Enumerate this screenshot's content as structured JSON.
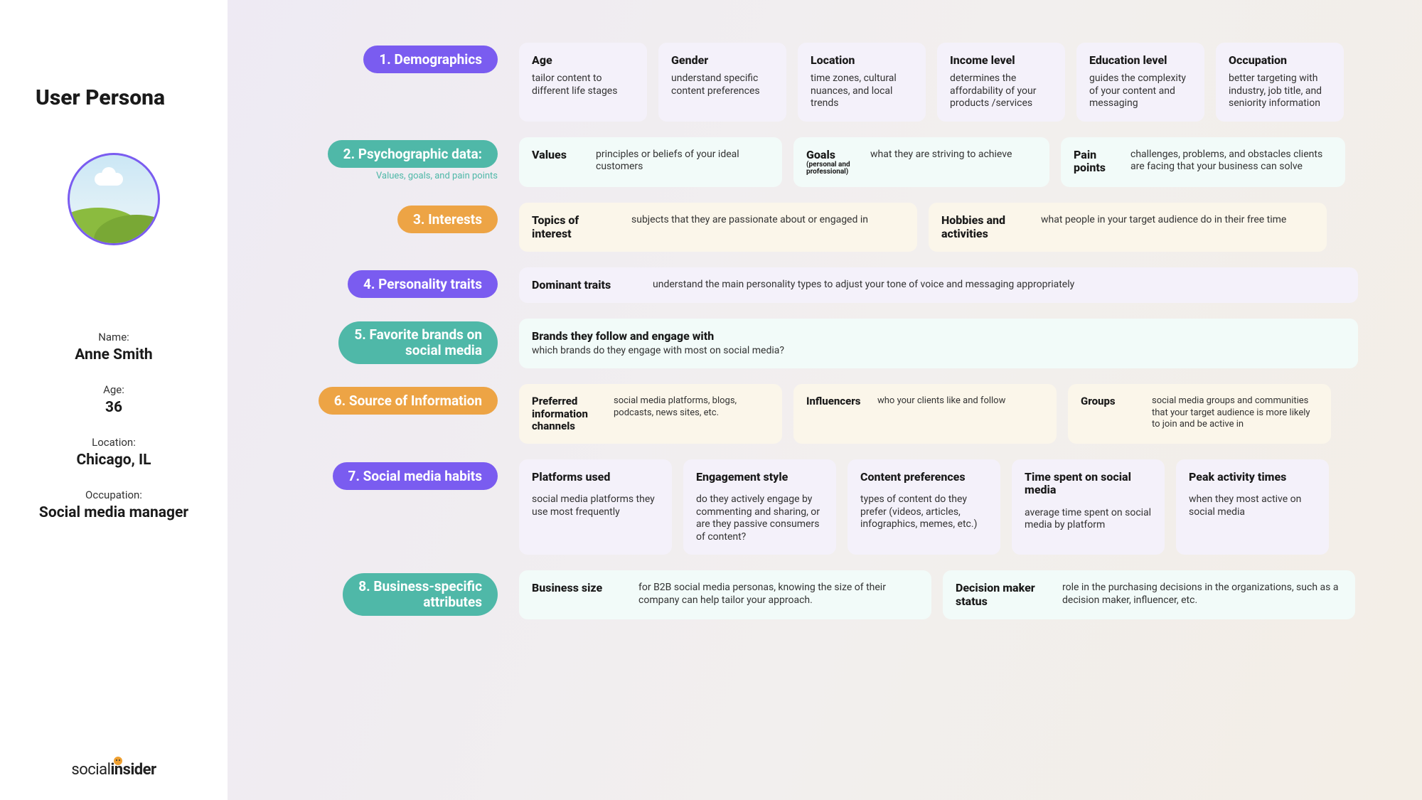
{
  "sidebar": {
    "title": "User Persona",
    "fields": [
      {
        "label": "Name:",
        "value": "Anne Smith"
      },
      {
        "label": "Age:",
        "value": "36"
      },
      {
        "label": "Location:",
        "value": "Chicago, IL"
      },
      {
        "label": "Occupation:",
        "value": "Social media manager"
      }
    ],
    "brand_light": "social",
    "brand_bold": "insider"
  },
  "colors": {
    "purple": "#7a5cf0",
    "teal": "#4fb8a8",
    "orange": "#eda445",
    "bg_purple": "#f4f1fa",
    "bg_teal": "#f2fbf9",
    "bg_orange": "#fbf6ea"
  },
  "sections": {
    "s1": {
      "label": "1. Demographics",
      "cards": [
        {
          "title": "Age",
          "desc": "tailor content to different life stages"
        },
        {
          "title": "Gender",
          "desc": "understand specific content preferences"
        },
        {
          "title": "Location",
          "desc": "time zones, cultural nuances, and local trends"
        },
        {
          "title": "Income level",
          "desc": "determines the affordability of your products /services"
        },
        {
          "title": "Education level",
          "desc": "guides the complexity of your content and messaging"
        },
        {
          "title": "Occupation",
          "desc": "better targeting with industry, job title, and seniority information"
        }
      ]
    },
    "s2": {
      "label": "2. Psychographic data:",
      "subtitle": "Values, goals, and pain points",
      "cards": [
        {
          "title": "Values",
          "desc": "principles or beliefs of your ideal customers"
        },
        {
          "title": "Goals",
          "subtitle": "(personal and professional)",
          "desc": "what they are striving to achieve"
        },
        {
          "title": "Pain points",
          "desc": "challenges, problems, and obstacles clients are facing that your business can solve"
        }
      ]
    },
    "s3": {
      "label": "3. Interests",
      "cards": [
        {
          "title": "Topics of interest",
          "desc": "subjects that they are passionate about or engaged in"
        },
        {
          "title": "Hobbies and activities",
          "desc": "what people in your target audience do in their free time"
        }
      ]
    },
    "s4": {
      "label": "4. Personality traits",
      "cards": [
        {
          "title": "Dominant traits",
          "desc": "understand the main personality types to adjust your tone of voice and messaging appropriately"
        }
      ]
    },
    "s5": {
      "label": "5. Favorite brands on social media",
      "cards": [
        {
          "title": "Brands they follow and engage with",
          "desc": "which brands do they engage with most on social media?"
        }
      ]
    },
    "s6": {
      "label": "6. Source of Information",
      "cards": [
        {
          "title": "Preferred information channels",
          "desc": "social media platforms, blogs, podcasts, news sites, etc."
        },
        {
          "title": "Influencers",
          "desc": "who your clients like and follow"
        },
        {
          "title": "Groups",
          "desc": "social media groups and communities that your target audience is more likely to join and be active in"
        }
      ]
    },
    "s7": {
      "label": "7. Social media habits",
      "cards": [
        {
          "title": "Platforms used",
          "desc": "social media platforms they use most frequently"
        },
        {
          "title": "Engagement style",
          "desc": "do they actively engage by commenting and sharing, or are they passive consumers of content?"
        },
        {
          "title": "Content preferences",
          "desc": "types of content do they prefer (videos, articles, infographics, memes, etc.)"
        },
        {
          "title": "Time spent on social media",
          "desc": "average time spent on social media by platform"
        },
        {
          "title": "Peak activity times",
          "desc": "when they most active on social media"
        }
      ]
    },
    "s8": {
      "label": "8. Business-specific attributes",
      "cards": [
        {
          "title": "Business size",
          "desc": "for B2B social media personas, knowing the size of their company can help tailor your approach."
        },
        {
          "title": "Decision maker status",
          "desc": "role in the purchasing decisions in the organizations, such as a decision maker, influencer, etc."
        }
      ]
    }
  }
}
